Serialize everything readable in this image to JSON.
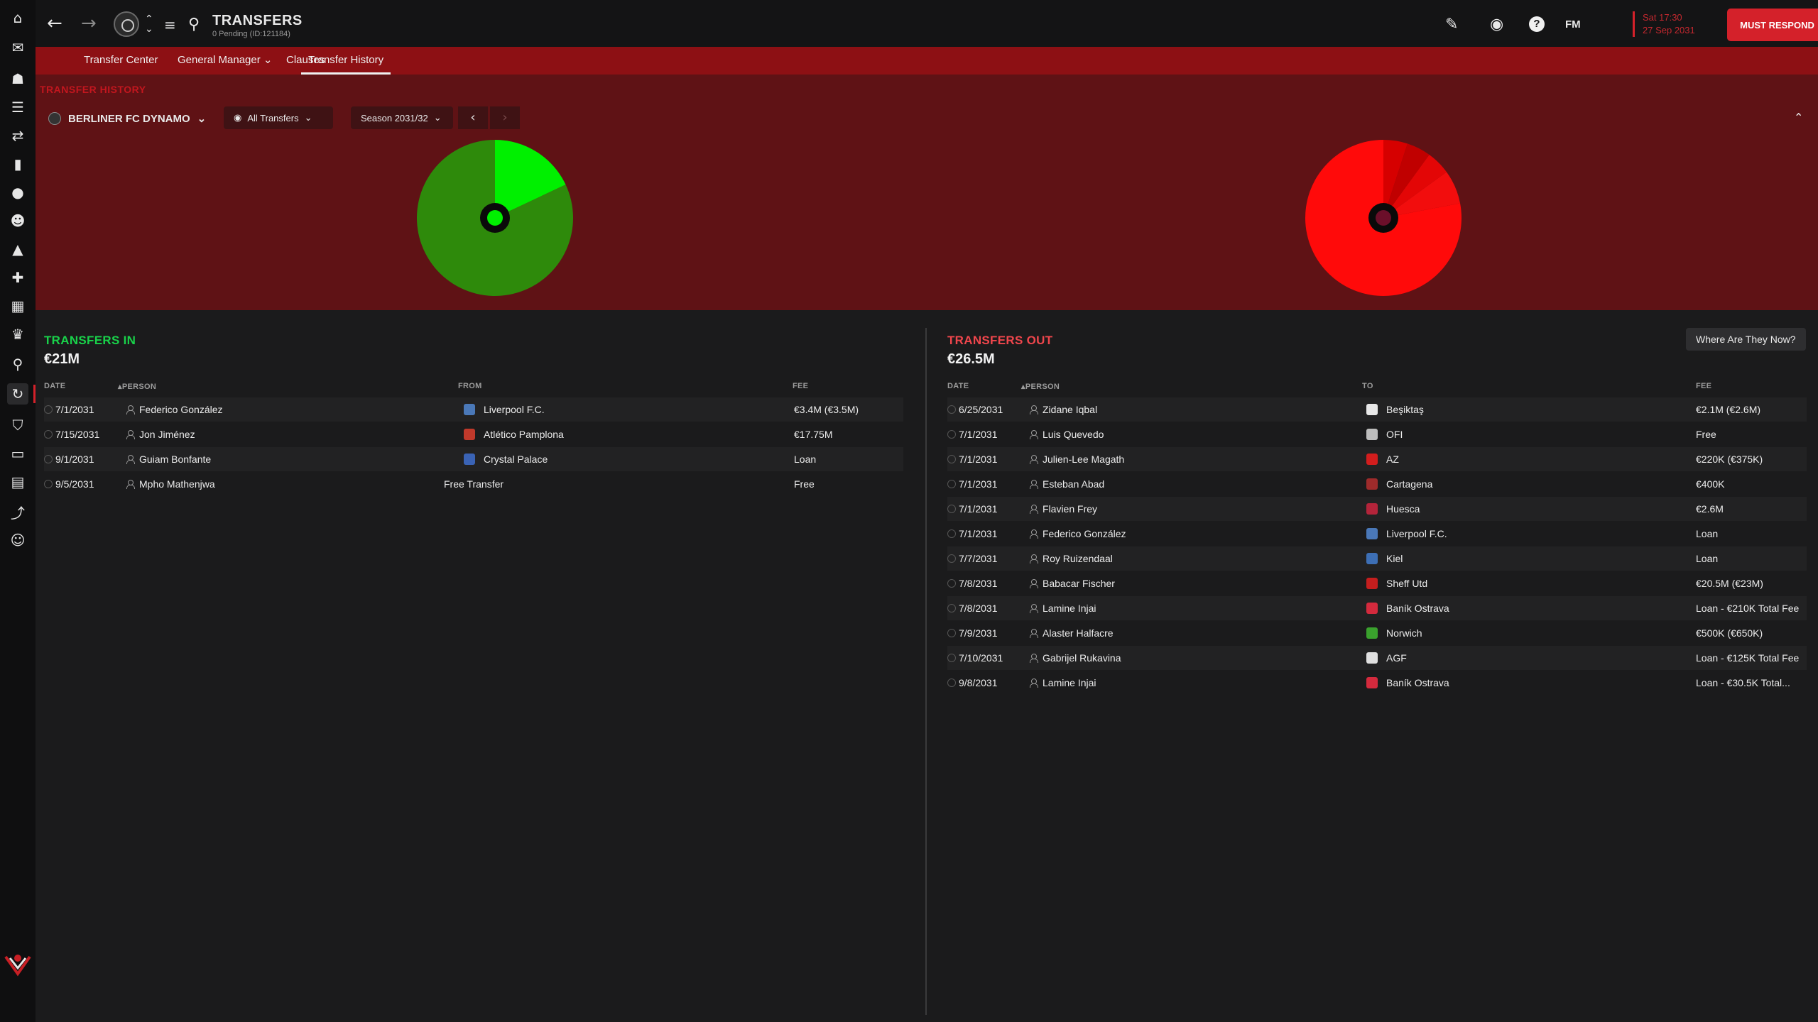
{
  "header": {
    "title": "TRANSFERS",
    "subtitle": "0 Pending (ID:121184)",
    "fm_label": "FM",
    "date_line1": "Sat 17:30",
    "date_line2": "27 Sep 2031",
    "must_respond": "MUST RESPOND",
    "must_respond_icon": "!"
  },
  "tabs": [
    {
      "label": "Transfer Center"
    },
    {
      "label": "General Manager ⌄"
    },
    {
      "label": "Clauses"
    },
    {
      "label": "Transfer History"
    }
  ],
  "filters": {
    "heading": "TRANSFER HISTORY",
    "club": "BERLINER FC DYNAMO",
    "club_chevron": "⌄",
    "transfers_filter": "All Transfers",
    "season": "Season 2031/32",
    "prev": "‹",
    "next": "›",
    "collapse": "⌃"
  },
  "charts": {
    "in_pie": {
      "highlight_fraction": 0.18,
      "colors": {
        "main": "#2e8a0b",
        "highlight": "#00f000"
      }
    },
    "out_pie": {
      "slice_fractions": [
        0.78,
        0.05,
        0.05,
        0.05,
        0.07
      ],
      "colors": [
        "#ff0a0a",
        "#d60000",
        "#c00000",
        "#e30606",
        "#f20d0d"
      ]
    }
  },
  "transfers_in": {
    "title": "TRANSFERS IN",
    "total": "€21M",
    "title_color": "#19d24a",
    "headers": {
      "date": "DATE",
      "person": "PERSON",
      "from": "FROM",
      "fee": "FEE"
    },
    "rows": [
      {
        "date": "7/1/2031",
        "person": "Federico González",
        "club": "Liverpool F.C.",
        "fee": "€3.4M (€3.5M)",
        "club_color": "#4a78b8"
      },
      {
        "date": "7/15/2031",
        "person": "Jon Jiménez",
        "club": "Atlético Pamplona",
        "fee": "€17.75M",
        "club_color": "#c0392b"
      },
      {
        "date": "9/1/2031",
        "person": "Guiam Bonfante",
        "club": "Crystal Palace",
        "fee": "Loan",
        "club_color": "#3a63b5"
      },
      {
        "date": "9/5/2031",
        "person": "Mpho Mathenjwa",
        "club": "Free Transfer",
        "fee": "Free",
        "club_color": ""
      }
    ]
  },
  "transfers_out": {
    "title": "TRANSFERS OUT",
    "total": "€26.5M",
    "title_color": "#f0464c",
    "where_button": "Where Are They Now?",
    "headers": {
      "date": "DATE",
      "person": "PERSON",
      "to": "TO",
      "fee": "FEE"
    },
    "rows": [
      {
        "date": "6/25/2031",
        "person": "Zidane Iqbal",
        "club": "Beşiktaş",
        "fee": "€2.1M (€2.6M)",
        "club_color": "#e8e8e8"
      },
      {
        "date": "7/1/2031",
        "person": "Luis Quevedo",
        "club": "OFI",
        "fee": "Free",
        "club_color": "#bdbdbd"
      },
      {
        "date": "7/1/2031",
        "person": "Julien-Lee Magath",
        "club": "AZ",
        "fee": "€220K (€375K)",
        "club_color": "#d21d1d"
      },
      {
        "date": "7/1/2031",
        "person": "Esteban Abad",
        "club": "Cartagena",
        "fee": "€400K",
        "club_color": "#9e2b2b"
      },
      {
        "date": "7/1/2031",
        "person": "Flavien Frey",
        "club": "Huesca",
        "fee": "€2.6M",
        "club_color": "#b3243a"
      },
      {
        "date": "7/1/2031",
        "person": "Federico González",
        "club": "Liverpool F.C.",
        "fee": "Loan",
        "club_color": "#4a78b8"
      },
      {
        "date": "7/7/2031",
        "person": "Roy Ruizendaal",
        "club": "Kiel",
        "fee": "Loan",
        "club_color": "#3d6fb5"
      },
      {
        "date": "7/8/2031",
        "person": "Babacar Fischer",
        "club": "Sheff Utd",
        "fee": "€20.5M (€23M)",
        "club_color": "#c41e1e"
      },
      {
        "date": "7/8/2031",
        "person": "Lamine Injai",
        "club": "Baník Ostrava",
        "fee": "Loan - €210K Total Fee",
        "club_color": "#d42a3d"
      },
      {
        "date": "7/9/2031",
        "person": "Alaster Halfacre",
        "club": "Norwich",
        "fee": "€500K (€650K)",
        "club_color": "#3aa12d"
      },
      {
        "date": "7/10/2031",
        "person": "Gabrijel Rukavina",
        "club": "AGF",
        "fee": "Loan - €125K Total Fee",
        "club_color": "#e0e0e0"
      },
      {
        "date": "9/8/2031",
        "person": "Lamine Injai",
        "club": "Baník Ostrava",
        "fee": "Loan - €30.5K Total...",
        "club_color": "#d42a3d"
      }
    ]
  }
}
